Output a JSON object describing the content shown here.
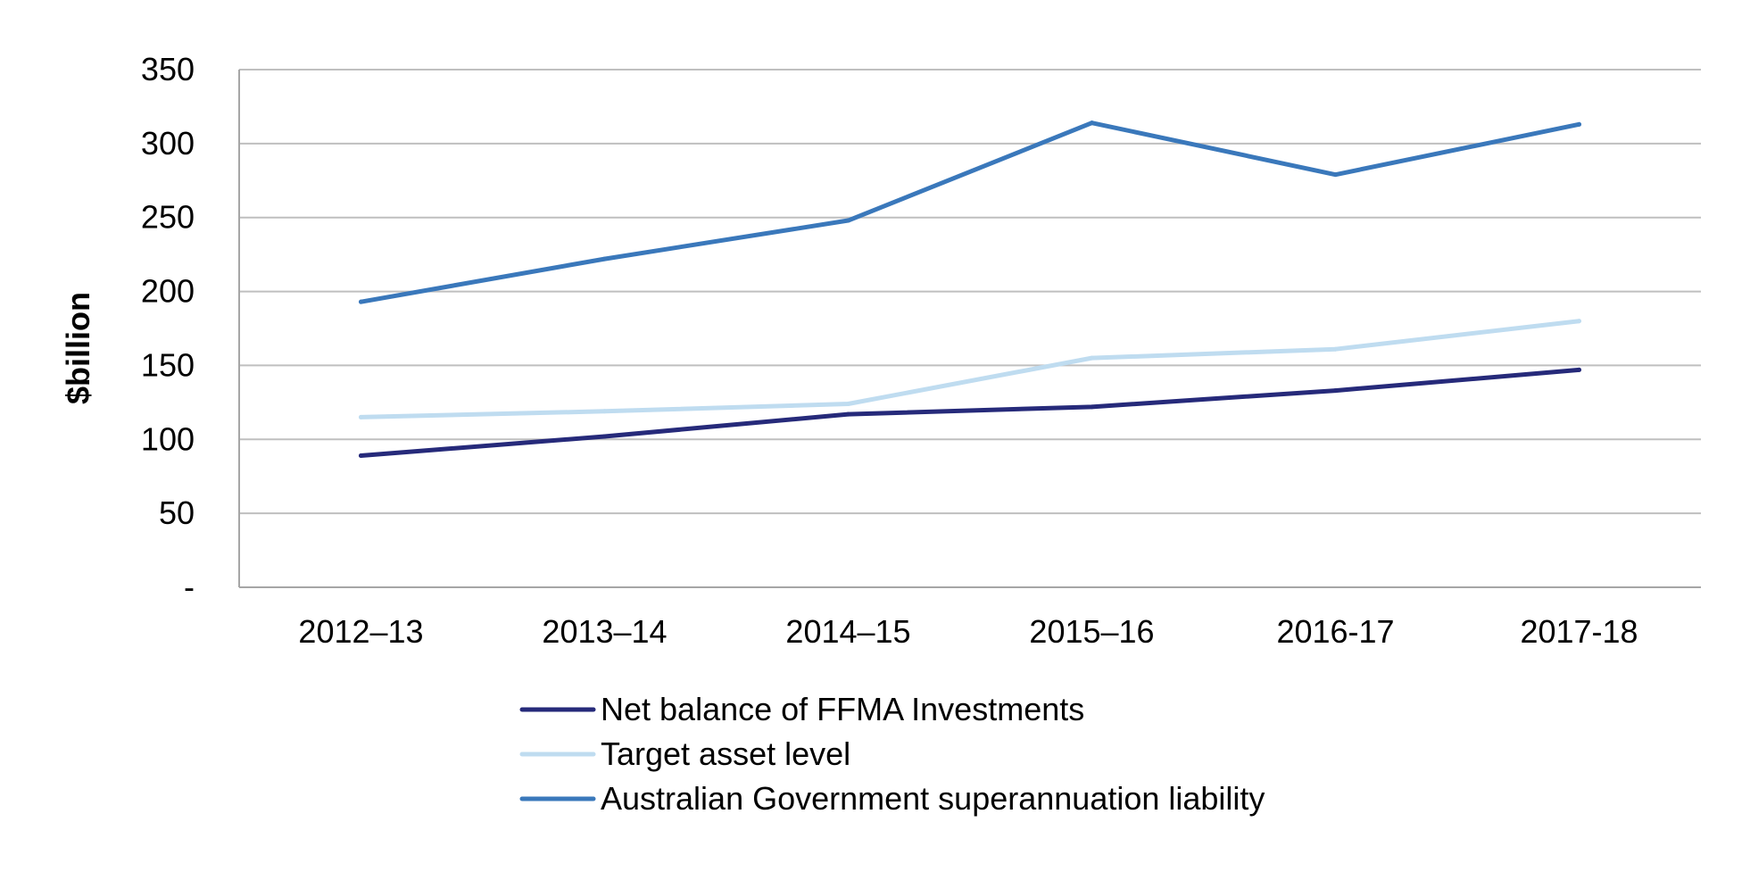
{
  "chart_data": {
    "type": "line",
    "title": "",
    "xlabel": "",
    "ylabel": "$billion",
    "categories": [
      "2012–13",
      "2013–14",
      "2014–15",
      "2015–16",
      "2016-17",
      "2017-18"
    ],
    "ylim": [
      0,
      350
    ],
    "yticks": [
      {
        "value": 0,
        "label": "-"
      },
      {
        "value": 50,
        "label": "50"
      },
      {
        "value": 100,
        "label": "100"
      },
      {
        "value": 150,
        "label": "150"
      },
      {
        "value": 200,
        "label": "200"
      },
      {
        "value": 250,
        "label": "250"
      },
      {
        "value": 300,
        "label": "300"
      },
      {
        "value": 350,
        "label": "350"
      }
    ],
    "grid": true,
    "legend_position": "bottom",
    "series": [
      {
        "name": "Net balance of FFMA Investments",
        "color": "#262a7a",
        "values": [
          89,
          102,
          117,
          122,
          133,
          147
        ]
      },
      {
        "name": "Target asset level",
        "color": "#bfdcf0",
        "values": [
          115,
          119,
          124,
          155,
          161,
          180
        ]
      },
      {
        "name": "Australian Government superannuation liability",
        "color": "#3a78bb",
        "values": [
          193,
          222,
          248,
          314,
          279,
          313
        ]
      }
    ]
  }
}
